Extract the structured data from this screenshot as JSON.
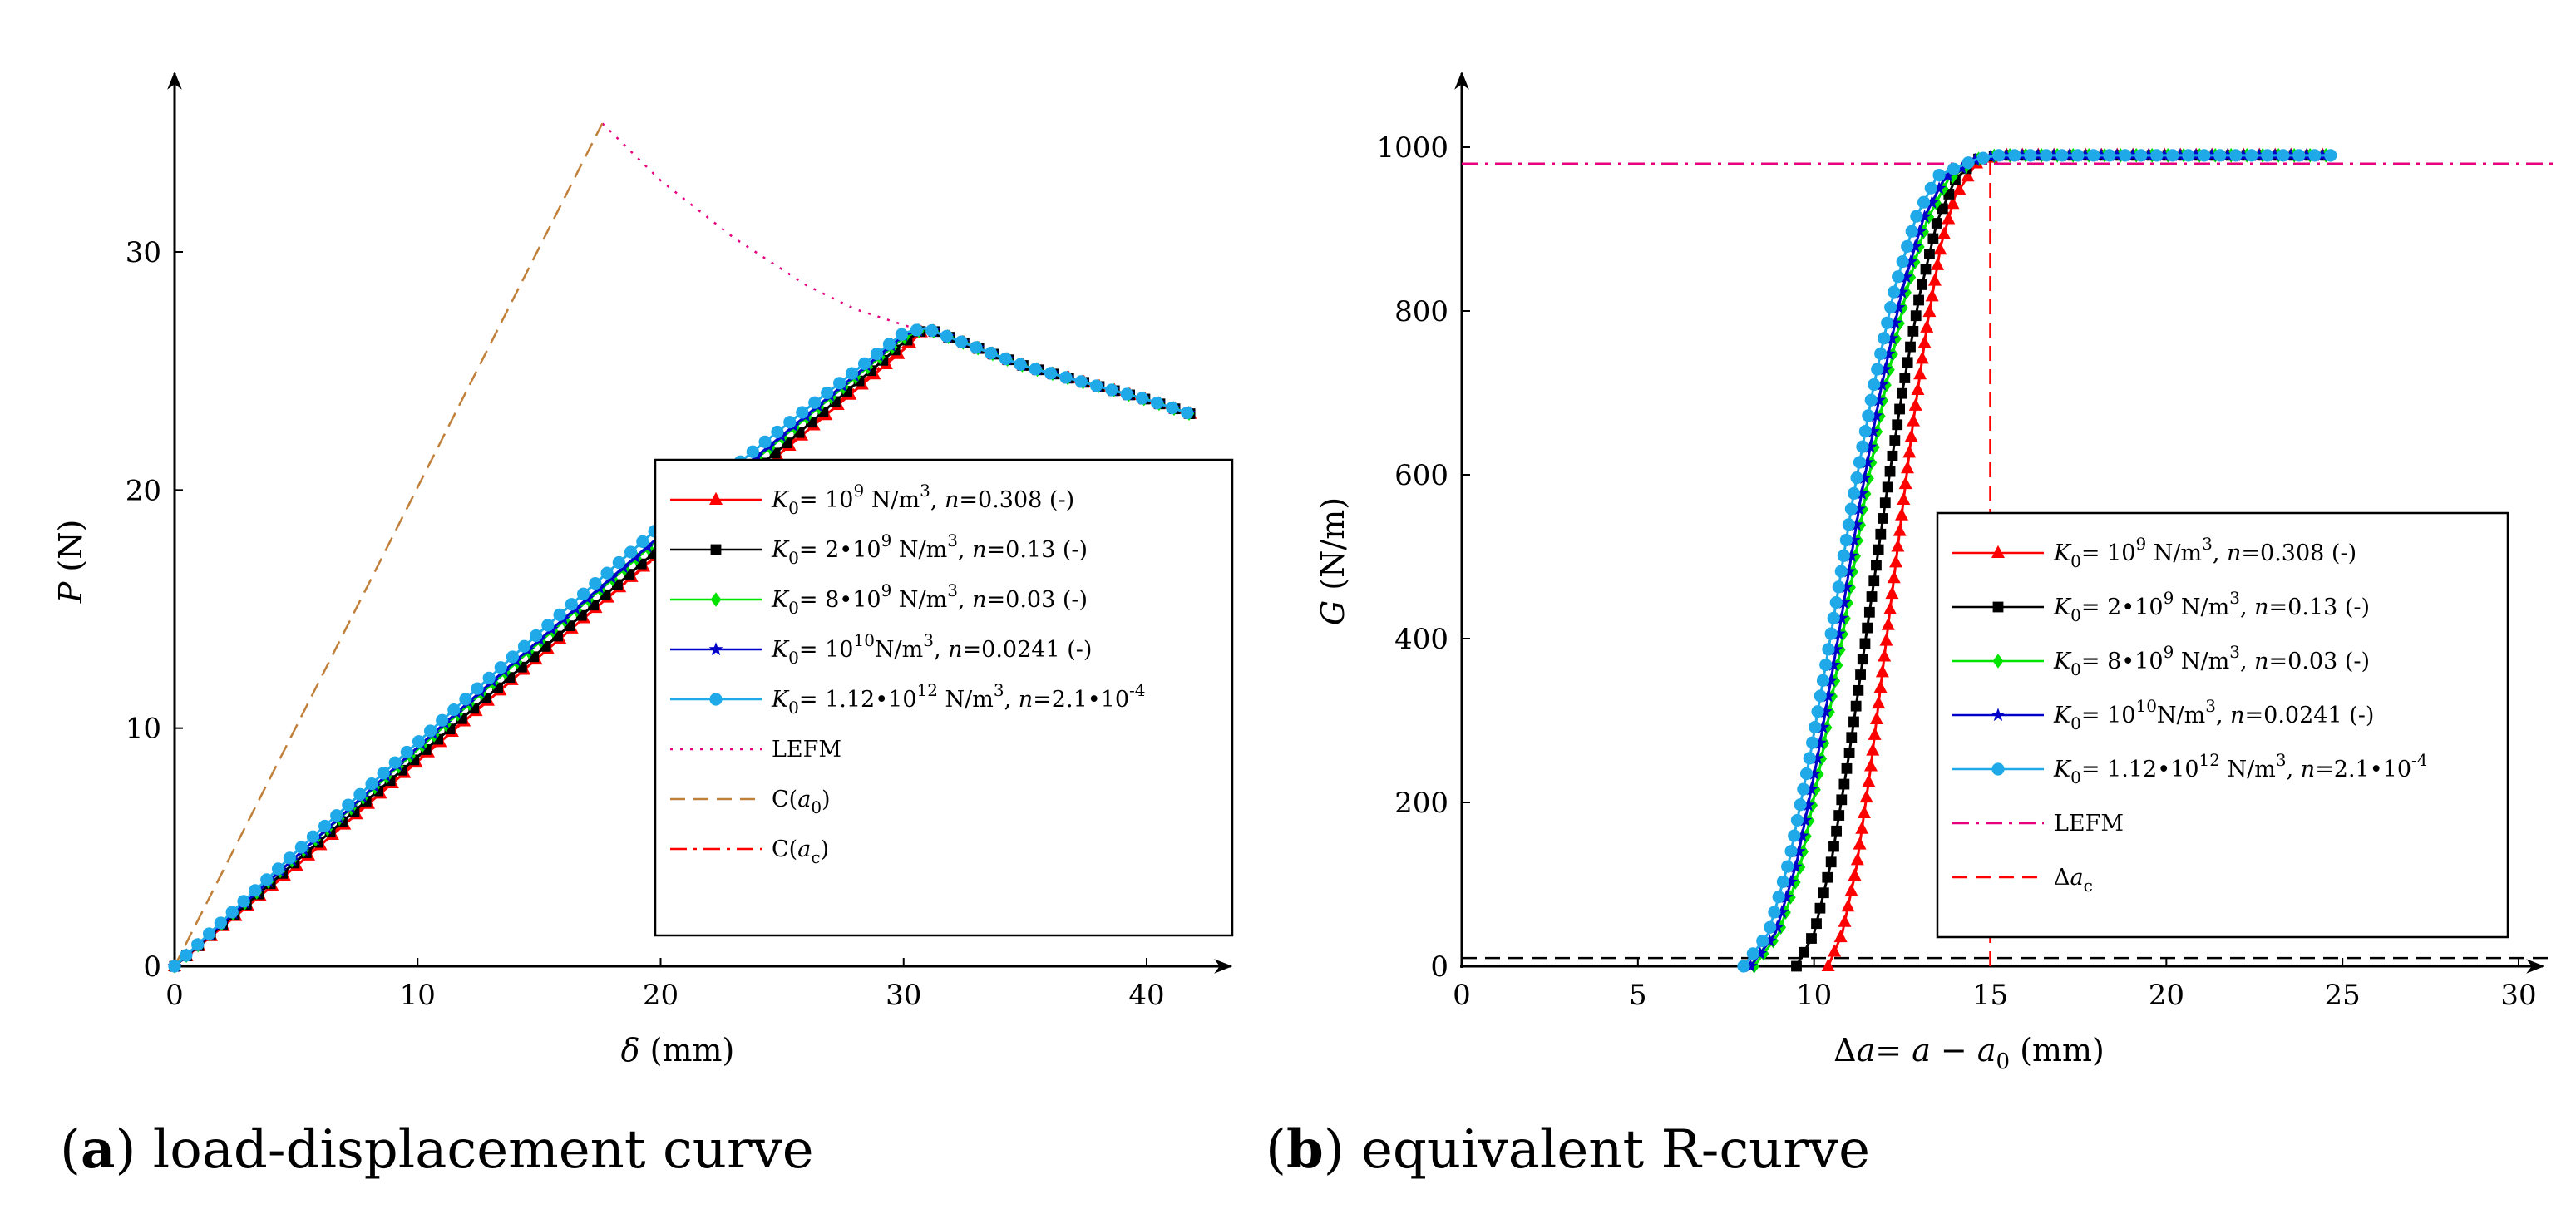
{
  "captions": [
    {
      "letter": "a",
      "text": "load-displacement curve"
    },
    {
      "letter": "b",
      "text": "equivalent R-curve"
    }
  ],
  "colors": {
    "red": "#ff0000",
    "black": "#000000",
    "green": "#00e400",
    "blue": "#0000c8",
    "cyan": "#1fa9e8",
    "lefm_a": "#e6007e",
    "lefm_b": "#e6007e",
    "ca0": "#c0803a",
    "cac": "#ff0000"
  },
  "chart_data": [
    {
      "type": "line",
      "id": "a",
      "xlabel": "δ (mm)",
      "ylabel": "P (N)",
      "xlim": [
        0,
        45
      ],
      "ylim": [
        0,
        37
      ],
      "xticks": [
        0,
        10,
        20,
        30,
        40
      ],
      "yticks": [
        0,
        10,
        20,
        30
      ],
      "grid": false,
      "legend_position": "lower-right",
      "series": [
        {
          "name": "K0= 10^9 N/m^3, n=0.308 (-)",
          "legend": {
            "main": "K",
            "sub": "0",
            "mid": "= 10",
            "sup": "9",
            "unit": " N/m",
            "unitsup": "3",
            "tail": ", n=0.308 (-)"
          },
          "color_key": "red",
          "marker": "triangle",
          "points": [
            [
              0,
              0
            ],
            [
              5,
              4.2
            ],
            [
              10,
              8.6
            ],
            [
              15,
              13.0
            ],
            [
              20,
              17.4
            ],
            [
              25,
              21.6
            ],
            [
              30,
              25.9
            ],
            [
              30.9,
              26.8
            ],
            [
              35,
              25.2
            ],
            [
              40,
              23.8
            ],
            [
              41.8,
              23.2
            ]
          ]
        },
        {
          "name": "K0= 2·10^9 N/m^3, n=0.13 (-)",
          "legend": {
            "main": "K",
            "sub": "0",
            "mid": "= 2•10",
            "sup": "9",
            "unit": " N/m",
            "unitsup": "3",
            "tail": ", n=0.13 (-)"
          },
          "color_key": "black",
          "marker": "square",
          "points": [
            [
              0,
              0
            ],
            [
              5,
              4.4
            ],
            [
              10,
              8.8
            ],
            [
              15,
              13.2
            ],
            [
              20,
              17.6
            ],
            [
              25,
              21.8
            ],
            [
              30,
              26.2
            ],
            [
              30.9,
              26.8
            ],
            [
              35,
              25.2
            ],
            [
              40,
              23.8
            ],
            [
              41.8,
              23.2
            ]
          ]
        },
        {
          "name": "K0= 8·10^9 N/m^3, n=0.03 (-)",
          "legend": {
            "main": "K",
            "sub": "0",
            "mid": "= 8•10",
            "sup": "9",
            "unit": " N/m",
            "unitsup": "3",
            "tail": ", n=0.03 (-)"
          },
          "color_key": "green",
          "marker": "diamond",
          "points": [
            [
              0,
              0
            ],
            [
              5,
              4.6
            ],
            [
              10,
              9.1
            ],
            [
              15,
              13.6
            ],
            [
              20,
              18.0
            ],
            [
              25,
              22.2
            ],
            [
              30,
              26.4
            ],
            [
              30.9,
              26.8
            ],
            [
              35,
              25.2
            ],
            [
              40,
              23.8
            ],
            [
              41.8,
              23.2
            ]
          ]
        },
        {
          "name": "K0= 10^10 N/m^3, n=0.0241 (-)",
          "legend": {
            "main": "K",
            "sub": "0",
            "mid": "= 10",
            "sup": "10",
            "unit": "N/m",
            "unitsup": "3",
            "tail": ", n=0.0241 (-)"
          },
          "color_key": "blue",
          "marker": "star",
          "points": [
            [
              0,
              0
            ],
            [
              5,
              4.6
            ],
            [
              10,
              9.2
            ],
            [
              15,
              13.7
            ],
            [
              20,
              18.1
            ],
            [
              25,
              22.3
            ],
            [
              30,
              26.5
            ],
            [
              30.9,
              26.8
            ],
            [
              35,
              25.2
            ],
            [
              40,
              23.8
            ],
            [
              41.8,
              23.2
            ]
          ]
        },
        {
          "name": "K0= 1.12·10^12 N/m^3, n=2.1·10^-4",
          "legend": {
            "main": "K",
            "sub": "0",
            "mid": "= 1.12•10",
            "sup": "12",
            "unit": " N/m",
            "unitsup": "3",
            "tail": ", n=2.1•10",
            "tailsup": "-4"
          },
          "color_key": "cyan",
          "marker": "circle",
          "points": [
            [
              0,
              0
            ],
            [
              5,
              4.8
            ],
            [
              10,
              9.4
            ],
            [
              15,
              14.0
            ],
            [
              20,
              18.5
            ],
            [
              25,
              22.6
            ],
            [
              30,
              26.6
            ],
            [
              30.9,
              26.8
            ],
            [
              35,
              25.2
            ],
            [
              40,
              23.8
            ],
            [
              41.8,
              23.2
            ]
          ]
        },
        {
          "name": "LEFM",
          "legend": {
            "plain": "LEFM"
          },
          "color_key": "lefm_a",
          "style": "dotted",
          "points": [
            [
              17.6,
              35.4
            ],
            [
              20,
              33.0
            ],
            [
              23,
              30.6
            ],
            [
              26,
              28.6
            ],
            [
              28,
              27.6
            ],
            [
              31,
              26.6
            ]
          ]
        },
        {
          "name": "C(a0)",
          "legend": {
            "plain": "C(",
            "ital": "a",
            "isub": "0",
            "close": ")"
          },
          "color_key": "ca0",
          "style": "dashed",
          "points": [
            [
              0,
              0
            ],
            [
              17.6,
              35.4
            ]
          ]
        },
        {
          "name": "C(ac)",
          "legend": {
            "plain": "C(",
            "ital": "a",
            "isub": "c",
            "close": ")"
          },
          "color_key": "cac",
          "style": "dashdot",
          "points": [
            [
              0,
              0
            ],
            [
              30.9,
              26.8
            ]
          ]
        }
      ]
    },
    {
      "type": "line",
      "id": "b",
      "xlabel": "Δa= a − a0 (mm)",
      "ylabel": "G (N/m)",
      "xlim": [
        0,
        31
      ],
      "ylim": [
        0,
        1100
      ],
      "xticks": [
        0,
        5,
        10,
        15,
        20,
        25,
        30
      ],
      "yticks": [
        0,
        200,
        400,
        600,
        800,
        1000
      ],
      "grid": false,
      "legend_position": "lower-right",
      "series": [
        {
          "name": "K0= 10^9 N/m^3, n=0.308 (-)",
          "legend": {
            "main": "K",
            "sub": "0",
            "mid": "= 10",
            "sup": "9",
            "unit": " N/m",
            "unitsup": "3",
            "tail": ", n=0.308 (-)"
          },
          "color_key": "red",
          "marker": "triangle",
          "points": [
            [
              10.4,
              0
            ],
            [
              10.8,
              40
            ],
            [
              11.2,
              120
            ],
            [
              11.6,
              240
            ],
            [
              12.0,
              380
            ],
            [
              12.4,
              520
            ],
            [
              12.8,
              660
            ],
            [
              13.2,
              780
            ],
            [
              13.6,
              880
            ],
            [
              14.0,
              940
            ],
            [
              14.6,
              980
            ],
            [
              15.2,
              990
            ],
            [
              17,
              990
            ],
            [
              20,
              990
            ],
            [
              24.8,
              990
            ]
          ]
        },
        {
          "name": "K0= 2·10^9 N/m^3, n=0.13 (-)",
          "legend": {
            "main": "K",
            "sub": "0",
            "mid": "= 2•10",
            "sup": "9",
            "unit": " N/m",
            "unitsup": "3",
            "tail": ", n=0.13 (-)"
          },
          "color_key": "black",
          "marker": "square",
          "points": [
            [
              9.5,
              0
            ],
            [
              10.0,
              40
            ],
            [
              10.5,
              130
            ],
            [
              11.0,
              260
            ],
            [
              11.5,
              410
            ],
            [
              12.0,
              560
            ],
            [
              12.5,
              700
            ],
            [
              13.0,
              820
            ],
            [
              13.5,
              910
            ],
            [
              14.0,
              960
            ],
            [
              14.6,
              985
            ],
            [
              15.2,
              990
            ],
            [
              17,
              990
            ],
            [
              20,
              990
            ],
            [
              24.8,
              990
            ]
          ]
        },
        {
          "name": "K0= 8·10^9 N/m^3, n=0.03 (-)",
          "legend": {
            "main": "K",
            "sub": "0",
            "mid": "= 8•10",
            "sup": "9",
            "unit": " N/m",
            "unitsup": "3",
            "tail": ", n=0.03 (-)"
          },
          "color_key": "green",
          "marker": "diamond",
          "points": [
            [
              8.3,
              0
            ],
            [
              9.0,
              40
            ],
            [
              9.6,
              120
            ],
            [
              10.2,
              250
            ],
            [
              10.8,
              400
            ],
            [
              11.4,
              560
            ],
            [
              12.0,
              700
            ],
            [
              12.6,
              820
            ],
            [
              13.2,
              910
            ],
            [
              13.8,
              960
            ],
            [
              14.6,
              985
            ],
            [
              15.2,
              990
            ],
            [
              17,
              990
            ],
            [
              20,
              990
            ],
            [
              24.8,
              990
            ]
          ]
        },
        {
          "name": "K0= 10^10 N/m^3, n=0.0241 (-)",
          "legend": {
            "main": "K",
            "sub": "0",
            "mid": "= 10",
            "sup": "10",
            "unit": "N/m",
            "unitsup": "3",
            "tail": ", n=0.0241 (-)"
          },
          "color_key": "blue",
          "marker": "star",
          "points": [
            [
              8.2,
              0
            ],
            [
              8.9,
              40
            ],
            [
              9.5,
              125
            ],
            [
              10.1,
              255
            ],
            [
              10.7,
              405
            ],
            [
              11.3,
              565
            ],
            [
              11.9,
              705
            ],
            [
              12.5,
              825
            ],
            [
              13.1,
              912
            ],
            [
              13.7,
              962
            ],
            [
              14.6,
              985
            ],
            [
              15.2,
              990
            ],
            [
              17,
              990
            ],
            [
              20,
              990
            ],
            [
              24.8,
              990
            ]
          ]
        },
        {
          "name": "K0= 1.12·10^12 N/m^3, n=2.1·10^-4",
          "legend": {
            "main": "K",
            "sub": "0",
            "mid": "= 1.12•10",
            "sup": "12",
            "unit": " N/m",
            "unitsup": "3",
            "tail": ", n=2.1•10",
            "tailsup": "-4"
          },
          "color_key": "cyan",
          "marker": "circle",
          "points": [
            [
              8.0,
              0
            ],
            [
              8.7,
              40
            ],
            [
              9.3,
              130
            ],
            [
              9.9,
              260
            ],
            [
              10.5,
              410
            ],
            [
              11.1,
              570
            ],
            [
              11.7,
              710
            ],
            [
              12.3,
              830
            ],
            [
              12.9,
              915
            ],
            [
              13.5,
              965
            ],
            [
              14.6,
              985
            ],
            [
              15.2,
              990
            ],
            [
              17,
              990
            ],
            [
              20,
              990
            ],
            [
              24.8,
              990
            ]
          ]
        },
        {
          "name": "LEFM",
          "legend": {
            "plain": "LEFM"
          },
          "color_key": "lefm_b",
          "style": "dashdot",
          "points": [
            [
              0,
              980
            ],
            [
              31,
              980
            ]
          ]
        },
        {
          "name": "Δac",
          "legend": {
            "plain": "Δ",
            "ital": "a",
            "isub": "c"
          },
          "color_key": "red",
          "style": "dashed",
          "points": [
            [
              15.0,
              0
            ],
            [
              15.0,
              985
            ]
          ]
        },
        {
          "name": "",
          "color_key": "black",
          "style": "dashed",
          "points": [
            [
              0,
              10
            ],
            [
              31,
              10
            ]
          ]
        }
      ]
    }
  ]
}
